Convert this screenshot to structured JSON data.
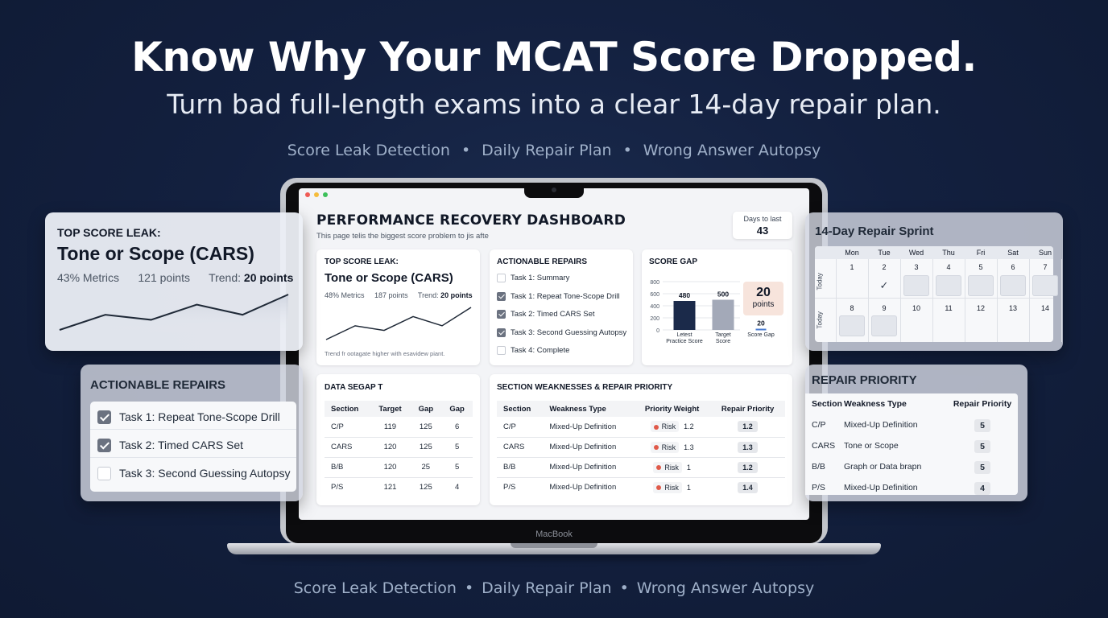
{
  "hero": {
    "title": "Know Why Your MCAT Score Dropped.",
    "subtitle": "Turn bad full-length exams into a clear 14-day repair plan.",
    "features": [
      "Score Leak Detection",
      "Daily Repair Plan",
      "Wrong Answer Autopsy"
    ]
  },
  "laptop": {
    "brand": "MacBook"
  },
  "dashboard": {
    "title": "PERFORMANCE RECOVERY DASHBOARD",
    "subtitle": "This page telis the biggest score problem to jis afte",
    "days_label": "Days to last",
    "days_value": "43",
    "leak": {
      "header": "TOP SCORE LEAK:",
      "name": "Tone or Scope (CARS)",
      "metric1": "48% Metrics",
      "metric2": "187 points",
      "trend_label": "Trend:",
      "trend_value": "20 points",
      "note": "Trend  fr ootagate higher with esavidew piant.",
      "trend_points": [
        2,
        5,
        4,
        7,
        5,
        9
      ]
    },
    "repairs": {
      "header": "ACTIONABLE REPAIRS",
      "tasks": [
        {
          "label": "Task 1: Summary",
          "checked": false
        },
        {
          "label": "Task 1: Repeat Tone-Scope Drill",
          "checked": true
        },
        {
          "label": "Task 2: Timed CARS Set",
          "checked": true
        },
        {
          "label": "Task 3: Second Guessing Autopsy",
          "checked": true
        },
        {
          "label": "Task 4: Complete",
          "checked": false
        }
      ]
    },
    "gap": {
      "header": "SCORE GAP",
      "badge_value": "20",
      "badge_unit": "points"
    },
    "data_gap": {
      "header": "DATA SEGAP T",
      "columns": [
        "Section",
        "Target",
        "Gap",
        "Gap"
      ],
      "rows": [
        [
          "C/P",
          "119",
          "125",
          "6"
        ],
        [
          "CARS",
          "120",
          "125",
          "5"
        ],
        [
          "B/B",
          "120",
          "25",
          "5"
        ],
        [
          "P/S",
          "121",
          "125",
          "4"
        ]
      ]
    },
    "weakness": {
      "header": "SECTION WEAKNESSES & REPAIR PRIORITY",
      "columns": [
        "Section",
        "Weakness Type",
        "Priority Weight",
        "Repair Priority"
      ],
      "risk_label": "Risk",
      "rows": [
        {
          "section": "C/P",
          "type": "Mixed-Up Definition",
          "weight": "1.2",
          "priority": "1.2"
        },
        {
          "section": "CARS",
          "type": "Mixed-Up Definition",
          "weight": "1.3",
          "priority": "1.3"
        },
        {
          "section": "B/B",
          "type": "Mixed-Up Definition",
          "weight": "1",
          "priority": "1.2"
        },
        {
          "section": "P/S",
          "type": "Mixed-Up Definition",
          "weight": "1",
          "priority": "1.4"
        }
      ]
    }
  },
  "chart_data": {
    "type": "bar",
    "title": "SCORE GAP",
    "categories": [
      "Letest Practice Score",
      "Target Score",
      "Score Gap"
    ],
    "category_lines": [
      [
        "Letest",
        "Practice Score"
      ],
      [
        "Target",
        "Score"
      ],
      [
        "Score Gap"
      ]
    ],
    "values": [
      480,
      500,
      20
    ],
    "value_labels": [
      "480",
      "500",
      "20"
    ],
    "colors": [
      "#1b2a4a",
      "#a3a9b8",
      "#4a7bd0"
    ],
    "ylim": [
      0,
      800
    ],
    "yticks": [
      "0",
      "200",
      "400",
      "600",
      "800"
    ],
    "grid": true
  },
  "left_leak": {
    "header": "TOP SCORE LEAK:",
    "name": "Tone or Scope (CARS)",
    "metric1": "43% Metrics",
    "metric2": "121 points",
    "trend_label": "Trend:",
    "trend_value": "20 points",
    "trend_points": [
      1,
      4,
      3,
      6,
      4,
      8
    ]
  },
  "left_repairs": {
    "header": "ACTIONABLE REPAIRS",
    "tasks": [
      {
        "label": "Task 1: Repeat Tone-Scope Drill",
        "checked": true
      },
      {
        "label": "Task 2: Timed CARS Set",
        "checked": true
      },
      {
        "label": "Task 3: Second Guessing Autopsy",
        "checked": false
      }
    ]
  },
  "sprint": {
    "title": "14-Day Repair Sprint",
    "days": [
      "Mon",
      "Tue",
      "Wed",
      "Thu",
      "Fri",
      "Sat",
      "Sun"
    ],
    "row_label": "Today",
    "week1": [
      "1",
      "2",
      "3",
      "4",
      "5",
      "6",
      "7"
    ],
    "week2": [
      "8",
      "9",
      "10",
      "11",
      "12",
      "13",
      "14"
    ],
    "done_mark": "✓"
  },
  "priority": {
    "title": "REPAIR PRIORITY",
    "columns": [
      "Section",
      "Weakness Type",
      "Repair Priority"
    ],
    "rows": [
      [
        "C/P",
        "Mixed-Up Definition",
        "5"
      ],
      [
        "CARS",
        "Tone or Scope",
        "5"
      ],
      [
        "B/B",
        "Graph or Data brapn",
        "5"
      ],
      [
        "P/S",
        "Mixed-Up Definition",
        "4"
      ]
    ]
  }
}
